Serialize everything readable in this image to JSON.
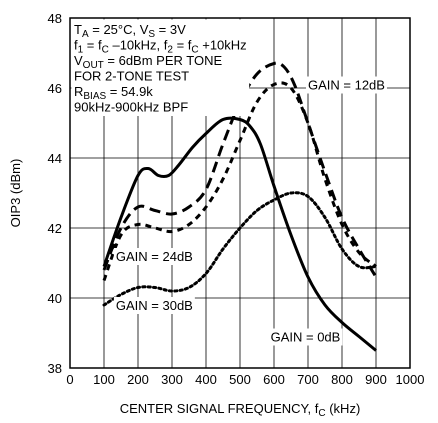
{
  "chart_data": {
    "type": "line",
    "xlabel": "CENTER SIGNAL FREQUENCY, f",
    "xlabel_sub": "C",
    "xlabel_unit": " (kHz)",
    "ylabel": "OIP3 (dBm)",
    "xlim": [
      0,
      1000
    ],
    "ylim": [
      38,
      48
    ],
    "x_ticks": [
      0,
      100,
      200,
      300,
      400,
      500,
      600,
      700,
      800,
      900,
      1000
    ],
    "y_ticks": [
      38,
      40,
      42,
      44,
      46,
      48
    ],
    "grid": true,
    "notes": [
      [
        {
          "t": "T"
        },
        {
          "t": "A",
          "sub": true
        },
        {
          "t": " = 25°C, V"
        },
        {
          "t": "S",
          "sub": true
        },
        {
          "t": " = 3V"
        }
      ],
      [
        {
          "t": "f"
        },
        {
          "t": "1",
          "sub": true
        },
        {
          "t": " = f"
        },
        {
          "t": "C",
          "sub": true
        },
        {
          "t": " –10kHz, f"
        },
        {
          "t": "2",
          "sub": true
        },
        {
          "t": " = f"
        },
        {
          "t": "C",
          "sub": true
        },
        {
          "t": " +10kHz"
        }
      ],
      [
        {
          "t": "V"
        },
        {
          "t": "OUT",
          "sub": true
        },
        {
          "t": " = 6dBm PER TONE"
        }
      ],
      [
        {
          "t": "FOR 2-TONE TEST"
        }
      ],
      [
        {
          "t": "R"
        },
        {
          "t": "BIAS",
          "sub": true
        },
        {
          "t": " = 54.9k"
        }
      ],
      [
        {
          "t": "90kHz-900kHz BPF"
        }
      ]
    ],
    "series": [
      {
        "name": "GAIN = 0dB",
        "style": "solid",
        "x": [
          100,
          150,
          200,
          230,
          260,
          290,
          320,
          360,
          400,
          450,
          500,
          530,
          560,
          600,
          650,
          700,
          750,
          800,
          850,
          900
        ],
        "y": [
          40.9,
          42.3,
          43.5,
          43.7,
          43.5,
          43.5,
          43.8,
          44.3,
          44.7,
          45.1,
          45.1,
          44.9,
          44.4,
          43.2,
          41.8,
          40.6,
          39.8,
          39.3,
          38.9,
          38.5
        ]
      },
      {
        "name": "GAIN = 12dB",
        "style": "long-dash",
        "x": [
          100,
          150,
          200,
          250,
          300,
          350,
          400,
          450,
          500,
          550,
          600,
          630,
          660,
          700,
          750,
          800,
          850,
          900
        ],
        "y": [
          40.8,
          42.0,
          42.6,
          42.5,
          42.4,
          42.6,
          43.1,
          44.4,
          45.6,
          46.4,
          46.7,
          46.6,
          46.1,
          45.0,
          43.6,
          42.3,
          41.4,
          40.6
        ]
      },
      {
        "name": "GAIN = 24dB",
        "style": "short-dash",
        "x": [
          100,
          150,
          200,
          250,
          300,
          350,
          400,
          450,
          500,
          550,
          600,
          650,
          700,
          750,
          800,
          850,
          900
        ],
        "y": [
          40.5,
          41.8,
          42.1,
          42.0,
          41.9,
          42.1,
          42.6,
          43.4,
          44.5,
          45.6,
          46.1,
          46.0,
          45.0,
          43.4,
          42.1,
          41.3,
          40.9
        ]
      },
      {
        "name": "GAIN = 30dB",
        "style": "dotted",
        "x": [
          100,
          150,
          200,
          250,
          300,
          350,
          400,
          450,
          500,
          550,
          600,
          650,
          700,
          750,
          800,
          850,
          900
        ],
        "y": [
          39.8,
          40.1,
          40.3,
          40.3,
          40.2,
          40.3,
          40.7,
          41.4,
          42.0,
          42.5,
          42.8,
          43.0,
          42.9,
          42.3,
          41.4,
          40.9,
          40.9
        ]
      }
    ],
    "labels": [
      {
        "series": 0,
        "text": "GAIN = 0dB",
        "x": 590,
        "y": 38.9
      },
      {
        "series": 1,
        "text": "GAIN = 12dB",
        "x": 700,
        "y": 46.1
      },
      {
        "series": 2,
        "text": "GAIN = 24dB",
        "x": 135,
        "y": 41.2
      },
      {
        "series": 3,
        "text": "GAIN = 30dB",
        "x": 135,
        "y": 39.8
      }
    ]
  }
}
